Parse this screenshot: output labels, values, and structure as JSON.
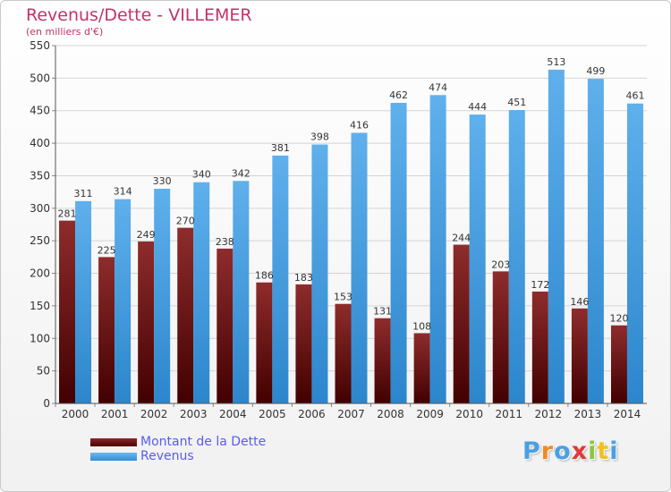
{
  "title": "Revenus/Dette - VILLEMER",
  "subtitle": "(en milliers d'€)",
  "logo": {
    "text": "Proxiti"
  },
  "colors": {
    "debt": "#7a1a1a",
    "revenue": "#4ea6e6",
    "title": "#c0336b",
    "legend_text": "#5a5af0"
  },
  "legend": {
    "items": [
      "Montant de la Dette",
      "Revenus"
    ]
  },
  "chart_data": {
    "type": "bar",
    "title": "Revenus/Dette - VILLEMER",
    "ylim": [
      0,
      550
    ],
    "yticks": [
      0,
      50,
      100,
      150,
      200,
      250,
      300,
      350,
      400,
      450,
      500,
      550
    ],
    "grid": true,
    "legend_position": "bottom-left",
    "categories": [
      "2000",
      "2001",
      "2002",
      "2003",
      "2004",
      "2005",
      "2006",
      "2007",
      "2008",
      "2009",
      "2010",
      "2011",
      "2012",
      "2013",
      "2014"
    ],
    "series": [
      {
        "name": "Montant de la Dette",
        "values": [
          281,
          225,
          249,
          270,
          238,
          186,
          183,
          153,
          131,
          108,
          244,
          203,
          172,
          146,
          120
        ]
      },
      {
        "name": "Revenus",
        "values": [
          311,
          314,
          330,
          340,
          342,
          381,
          398,
          416,
          462,
          474,
          444,
          451,
          513,
          499,
          461
        ]
      }
    ]
  }
}
